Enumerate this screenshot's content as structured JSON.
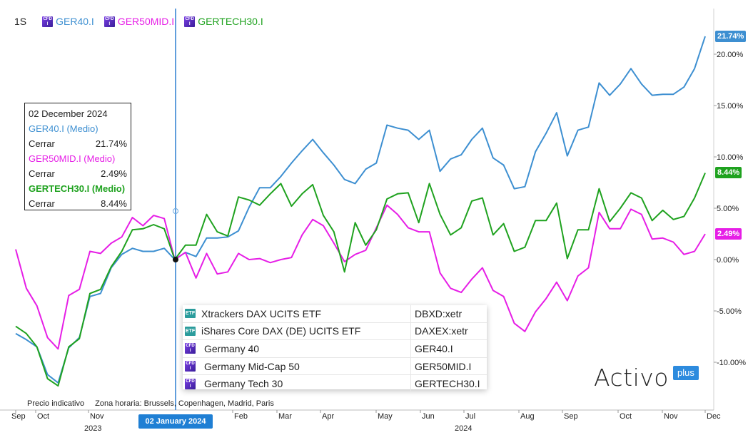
{
  "legend": {
    "period": "1S",
    "items": [
      {
        "name": "GER40.I",
        "color": "#3d8fd1"
      },
      {
        "name": "GER50MID.I",
        "color": "#e61ee6"
      },
      {
        "name": "GERTECH30.I",
        "color": "#1fa21f"
      }
    ]
  },
  "tooltip": {
    "date": "02 December 2024",
    "entries": [
      {
        "series": "GER40.I (Medio)",
        "label": "Cerrar",
        "value": "21.74%",
        "color": "#3d8fd1"
      },
      {
        "series": "GER50MID.I (Medio)",
        "label": "Cerrar",
        "value": "2.49%",
        "color": "#e61ee6"
      },
      {
        "series": "GERTECH30.I (Medio)",
        "label": "Cerrar",
        "value": "8.44%",
        "color": "#1fa21f"
      }
    ]
  },
  "related": [
    {
      "icon": "ETF",
      "name": "Xtrackers DAX UCITS ETF",
      "ticker": "DBXD:xetr"
    },
    {
      "icon": "ETF",
      "name": "iShares Core DAX (DE) UCITS ETF",
      "ticker": "DAXEX:xetr"
    },
    {
      "icon": "CFD",
      "name": "Germany 40",
      "ticker": "GER40.I"
    },
    {
      "icon": "CFD",
      "name": "Germany Mid-Cap 50",
      "ticker": "GER50MID.I"
    },
    {
      "icon": "CFD",
      "name": "Germany Tech 30",
      "ticker": "GERTECH30.I"
    }
  ],
  "footer": {
    "price_note": "Precio indicativo",
    "timezone": "Zona horaria: Brussels, Copenhagen, Madrid, Paris",
    "crosshair_date": "02 January 2024"
  },
  "logo": {
    "word": "Activo",
    "plus": "plus"
  },
  "chart_data": {
    "type": "line",
    "ylim": [
      -12.5,
      22.5
    ],
    "y_ticks": [
      -10,
      -5,
      0,
      5,
      10,
      15,
      20
    ],
    "y_tick_labels": [
      "-10.00%",
      "-5.00%",
      "0.00%",
      "5.00%",
      "10.00%",
      "15.00%",
      "20.00%"
    ],
    "x_tick_labels": [
      "Sep",
      "Oct",
      "Nov",
      "Dec",
      "Jan",
      "Feb",
      "Mar",
      "Apr",
      "May",
      "Jun",
      "Jul",
      "Aug",
      "Sep",
      "Oct",
      "Nov",
      "Dec"
    ],
    "x_year_labels": [
      "2023",
      "2024"
    ],
    "last_value_labels": [
      "21.74%",
      "8.44%",
      "2.49%"
    ],
    "series": [
      {
        "name": "GER40.I",
        "color": "#3d8fd1",
        "values": [
          -7.2,
          -7.8,
          -8.5,
          -11.2,
          -12.0,
          -8.6,
          -7.6,
          -3.6,
          -3.3,
          -0.8,
          0.5,
          1.1,
          0.8,
          0.8,
          1.1,
          0.0,
          0.7,
          0.3,
          2.1,
          2.1,
          2.2,
          2.8,
          5.1,
          7.0,
          7.0,
          8.1,
          9.4,
          10.6,
          11.7,
          10.4,
          9.2,
          7.8,
          7.4,
          8.8,
          9.4,
          13.1,
          12.8,
          12.6,
          11.7,
          12.6,
          8.6,
          9.8,
          10.2,
          11.7,
          12.8,
          9.9,
          9.2,
          6.9,
          7.1,
          10.5,
          12.3,
          14.3,
          10.1,
          12.6,
          12.9,
          17.2,
          16.0,
          17.1,
          18.6,
          17.1,
          16.0,
          16.1,
          16.1,
          16.8,
          18.6,
          21.74
        ]
      },
      {
        "name": "GER50MID.I",
        "color": "#e61ee6",
        "values": [
          1.0,
          -2.8,
          -4.5,
          -7.6,
          -8.7,
          -3.5,
          -2.9,
          0.8,
          0.6,
          1.6,
          2.2,
          4.1,
          3.3,
          4.3,
          4.0,
          0.0,
          0.7,
          -1.8,
          0.6,
          -1.4,
          -1.2,
          0.6,
          0.0,
          0.1,
          -0.3,
          0.0,
          0.2,
          2.4,
          3.9,
          3.3,
          1.6,
          -0.2,
          0.5,
          0.9,
          3.1,
          5.3,
          4.4,
          3.1,
          2.7,
          2.7,
          -1.3,
          -2.8,
          -3.2,
          -1.9,
          -0.8,
          -3.0,
          -3.6,
          -6.2,
          -7.0,
          -5.1,
          -3.8,
          -2.2,
          -4.0,
          -1.6,
          -0.8,
          4.6,
          3.0,
          3.0,
          4.9,
          4.4,
          2.0,
          2.1,
          1.7,
          0.5,
          0.8,
          2.49
        ]
      },
      {
        "name": "GERTECH30.I",
        "color": "#1fa21f",
        "values": [
          -6.5,
          -7.2,
          -8.5,
          -11.6,
          -12.3,
          -8.5,
          -7.7,
          -3.3,
          -2.9,
          -0.7,
          0.8,
          2.9,
          3.0,
          3.4,
          3.0,
          0.0,
          1.4,
          1.4,
          4.4,
          2.7,
          2.3,
          6.1,
          5.8,
          5.3,
          6.4,
          7.4,
          5.2,
          6.4,
          7.3,
          4.3,
          2.7,
          -1.2,
          3.6,
          1.4,
          2.9,
          5.9,
          6.4,
          6.5,
          3.6,
          7.4,
          4.4,
          2.4,
          3.1,
          5.7,
          6.0,
          2.4,
          3.5,
          0.8,
          1.2,
          3.8,
          3.8,
          5.5,
          0.1,
          2.9,
          2.9,
          6.9,
          3.7,
          5.0,
          6.5,
          6.0,
          3.8,
          4.8,
          3.9,
          4.2,
          6.0,
          8.44
        ]
      }
    ]
  }
}
